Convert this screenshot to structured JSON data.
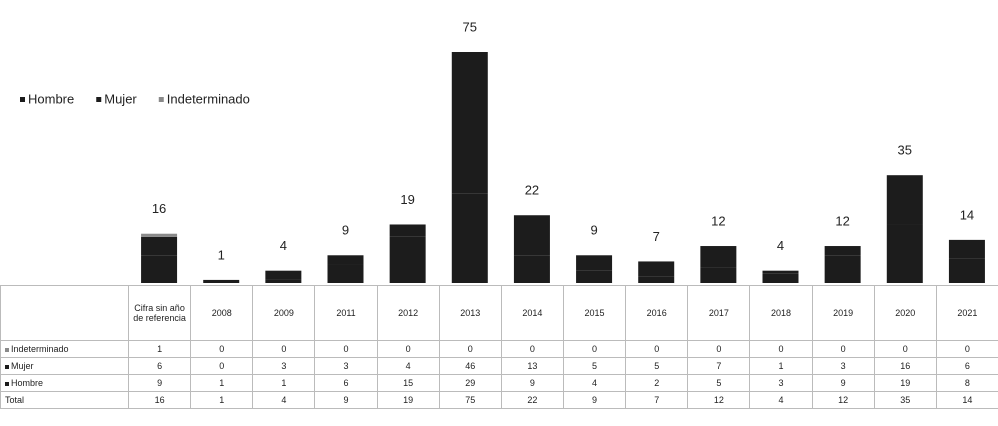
{
  "chart_data": {
    "type": "bar",
    "stacked": true,
    "categories": [
      "Cifra sin año de referencia",
      "2008",
      "2009",
      "2011",
      "2012",
      "2013",
      "2014",
      "2015",
      "2016",
      "2017",
      "2018",
      "2019",
      "2020",
      "2021"
    ],
    "series": [
      {
        "name": "Hombre",
        "color": "#1c1c1c",
        "values": [
          9,
          1,
          1,
          6,
          15,
          29,
          9,
          4,
          2,
          5,
          3,
          9,
          19,
          8
        ]
      },
      {
        "name": "Mujer",
        "color": "#1c1c1c",
        "values": [
          6,
          0,
          3,
          3,
          4,
          46,
          13,
          5,
          5,
          7,
          1,
          3,
          16,
          6
        ]
      },
      {
        "name": "Indeterminado",
        "color": "#8a8a8a",
        "values": [
          1,
          0,
          0,
          0,
          0,
          0,
          0,
          0,
          0,
          0,
          0,
          0,
          0,
          0
        ]
      }
    ],
    "totals": [
      16,
      1,
      4,
      9,
      19,
      75,
      22,
      9,
      7,
      12,
      4,
      12,
      35,
      14
    ],
    "total_label": "Total",
    "legend": "top-left"
  }
}
